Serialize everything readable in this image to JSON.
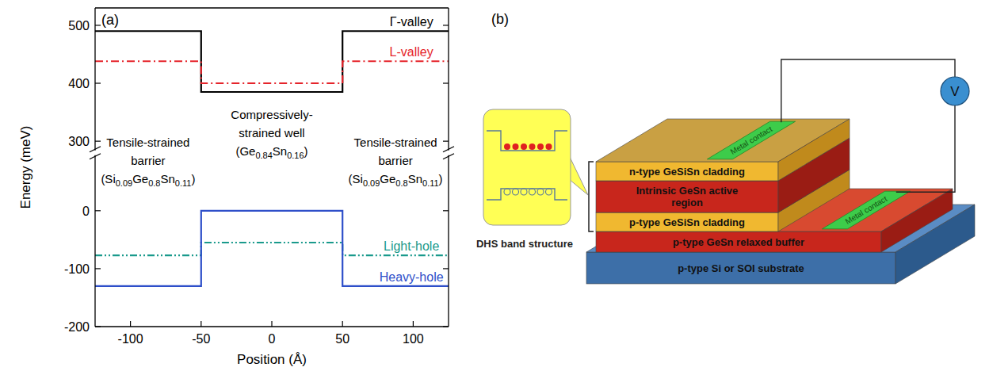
{
  "chart_data": [
    {
      "type": "line",
      "title": "(a)",
      "ylabel": "Energy (meV)",
      "x": [
        -125,
        -50,
        -50,
        50,
        50,
        125
      ],
      "xlim": [
        -125,
        125
      ],
      "ylim": [
        280,
        530
      ],
      "yticks": [
        300,
        400,
        500
      ],
      "tick_labels": "y",
      "series": [
        {
          "name": "Γ-valley",
          "color": "#000000",
          "line_style": "solid",
          "values": [
            490,
            490,
            385,
            385,
            490,
            490
          ]
        },
        {
          "name": "L-valley",
          "color": "#e5242b",
          "line_style": "dashdot",
          "values": [
            438,
            438,
            400,
            400,
            438,
            438
          ]
        }
      ],
      "annotations": [
        {
          "lines": [
            "Tensile-strained",
            "barrier",
            "(Si0.09Ge0.8Sn0.11)"
          ]
        },
        {
          "lines": [
            "Compressively-",
            "strained well",
            "(Ge0.84Sn0.16)"
          ]
        },
        {
          "lines": [
            "Tensile-strained",
            "barrier",
            "(Si0.09Ge0.8Sn0.11)"
          ]
        }
      ]
    },
    {
      "type": "line",
      "xlabel": "Position (Å)",
      "x": [
        -125,
        -50,
        -50,
        50,
        50,
        125
      ],
      "xlim": [
        -125,
        125
      ],
      "ylim": [
        -200,
        100
      ],
      "xticks": [
        -100,
        -50,
        0,
        50,
        100
      ],
      "yticks": [
        -200,
        -100,
        0
      ],
      "series": [
        {
          "name": "Light-hole",
          "color": "#1a9a8c",
          "line_style": "dashdotdot",
          "values": [
            -77,
            -77,
            -55,
            -55,
            -77,
            -77
          ]
        },
        {
          "name": "Heavy-hole",
          "color": "#2e4fc9",
          "line_style": "solid",
          "values": [
            -130,
            -130,
            0,
            0,
            -130,
            -130
          ]
        }
      ]
    }
  ],
  "diagram": {
    "panel_label": "(b)",
    "inset_caption": "DHS band structure",
    "layers": [
      "n-type GeSiSn cladding",
      "Intrinsic GeSn active region",
      "p-type GeSiSn cladding",
      "p-type GeSn relaxed buffer",
      "p-type Si or SOI substrate"
    ],
    "contacts": [
      "Metal contact",
      "Metal contact"
    ],
    "meter": "V"
  }
}
